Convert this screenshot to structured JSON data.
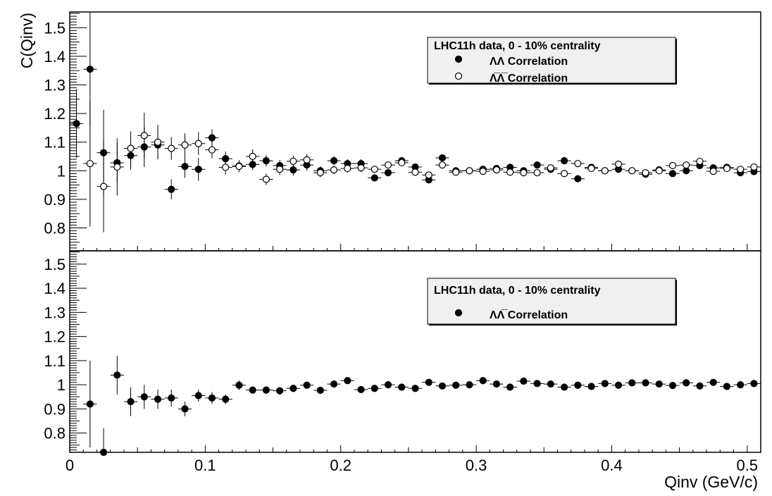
{
  "chart_data": [
    {
      "type": "scatter",
      "ylabel": "C(Qinv)",
      "xlim": [
        0,
        0.51
      ],
      "ylim": [
        0.72,
        1.555
      ],
      "xticks": [
        "0",
        "0.1",
        "0.2",
        "0.3",
        "0.4",
        "0.5"
      ],
      "yticks": [
        "0.8",
        "0.9",
        "1",
        "1.1",
        "1.2",
        "1.3",
        "1.4",
        "1.5"
      ],
      "legend": {
        "title": "LHC11h data, 0 - 10% centrality",
        "entries": [
          {
            "marker": "filled",
            "label": "ΛΛ Correlation"
          },
          {
            "marker": "open",
            "label": "Λ̅Λ̅ Correlation"
          }
        ],
        "placement": "top-right"
      },
      "series": [
        {
          "marker": "filled",
          "x": [
            0.005,
            0.015,
            0.025,
            0.035,
            0.045,
            0.055,
            0.065,
            0.075,
            0.085,
            0.095,
            0.105,
            0.115,
            0.125,
            0.135,
            0.145,
            0.155,
            0.165,
            0.175,
            0.185,
            0.195,
            0.205,
            0.215,
            0.225,
            0.235,
            0.245,
            0.255,
            0.265,
            0.275,
            0.285,
            0.295,
            0.305,
            0.315,
            0.325,
            0.335,
            0.345,
            0.355,
            0.365,
            0.375,
            0.385,
            0.395,
            0.405,
            0.415,
            0.425,
            0.435,
            0.445,
            0.455,
            0.465,
            0.475,
            0.485,
            0.495,
            0.505
          ],
          "y": [
            1.165,
            1.355,
            1.063,
            1.028,
            1.053,
            1.083,
            1.09,
            0.935,
            1.015,
            1.005,
            1.115,
            1.042,
            1.017,
            1.022,
            1.035,
            1.018,
            1.003,
            1.02,
            1.0,
            1.035,
            1.025,
            1.025,
            0.975,
            0.993,
            1.035,
            1.013,
            0.968,
            1.045,
            1.0,
            1.0,
            1.005,
            1.008,
            1.012,
            1.0,
            1.02,
            1.005,
            1.035,
            0.972,
            1.012,
            1.0,
            1.005,
            1.0,
            0.988,
            1.003,
            0.99,
            1.0,
            1.018,
            1.01,
            1.012,
            0.993,
            0.997
          ],
          "yerr": [
            0.12,
            0.2,
            0.15,
            0.07,
            0.05,
            0.07,
            0.05,
            0.035,
            0.04,
            0.04,
            0.03,
            0.025,
            0.02,
            0.02,
            0.02,
            0.02,
            0.02,
            0.02,
            0.015,
            0.015,
            0.015,
            0.015,
            0.012,
            0.012,
            0.012,
            0.012,
            0.012,
            0.012,
            0.01,
            0.01,
            0.01,
            0.01,
            0.01,
            0.01,
            0.01,
            0.01,
            0.01,
            0.008,
            0.008,
            0.008,
            0.008,
            0.008,
            0.008,
            0.008,
            0.008,
            0.008,
            0.008,
            0.008,
            0.008,
            0.008,
            0.008
          ]
        },
        {
          "marker": "open",
          "x": [
            0.015,
            0.025,
            0.035,
            0.045,
            0.055,
            0.065,
            0.075,
            0.085,
            0.095,
            0.105,
            0.115,
            0.125,
            0.135,
            0.145,
            0.155,
            0.165,
            0.175,
            0.185,
            0.195,
            0.205,
            0.215,
            0.225,
            0.235,
            0.245,
            0.255,
            0.265,
            0.275,
            0.285,
            0.295,
            0.305,
            0.315,
            0.325,
            0.335,
            0.345,
            0.355,
            0.365,
            0.375,
            0.385,
            0.395,
            0.405,
            0.415,
            0.425,
            0.435,
            0.445,
            0.455,
            0.465,
            0.475,
            0.485,
            0.495,
            0.505
          ],
          "y": [
            1.025,
            0.945,
            1.013,
            1.078,
            1.123,
            1.1,
            1.078,
            1.09,
            1.095,
            1.073,
            1.012,
            1.015,
            1.05,
            0.97,
            1.005,
            1.033,
            1.038,
            0.993,
            1.003,
            1.008,
            1.01,
            1.005,
            1.02,
            1.028,
            0.995,
            0.985,
            1.02,
            0.995,
            1.0,
            0.998,
            1.003,
            0.995,
            0.993,
            0.993,
            1.01,
            0.99,
            1.025,
            1.008,
            1.0,
            1.023,
            1.0,
            0.993,
            1.0,
            1.018,
            1.02,
            1.033,
            0.998,
            1.008,
            1.005,
            1.013
          ],
          "yerr": [
            0.22,
            0.16,
            0.1,
            0.06,
            0.08,
            0.06,
            0.04,
            0.04,
            0.04,
            0.03,
            0.025,
            0.02,
            0.025,
            0.02,
            0.02,
            0.02,
            0.02,
            0.015,
            0.015,
            0.015,
            0.015,
            0.012,
            0.012,
            0.012,
            0.012,
            0.012,
            0.012,
            0.01,
            0.01,
            0.01,
            0.01,
            0.01,
            0.01,
            0.01,
            0.01,
            0.01,
            0.008,
            0.008,
            0.008,
            0.008,
            0.008,
            0.008,
            0.008,
            0.008,
            0.008,
            0.008,
            0.008,
            0.008,
            0.008,
            0.008
          ]
        }
      ]
    },
    {
      "type": "scatter",
      "xlabel": "Qinv (GeV/c)",
      "xlim": [
        0,
        0.51
      ],
      "ylim": [
        0.72,
        1.555
      ],
      "xticks": [
        "0",
        "0.1",
        "0.2",
        "0.3",
        "0.4",
        "0.5"
      ],
      "yticks": [
        "0.8",
        "0.9",
        "1",
        "1.1",
        "1.2",
        "1.3",
        "1.4",
        "1.5"
      ],
      "legend": {
        "title": "LHC11h data, 0 - 10% centrality",
        "entries": [
          {
            "marker": "filled",
            "label": "ΛΛ̅ Correlation"
          }
        ],
        "placement": "top-right"
      },
      "series": [
        {
          "marker": "filled",
          "x": [
            0.015,
            0.025,
            0.035,
            0.045,
            0.055,
            0.065,
            0.075,
            0.085,
            0.095,
            0.105,
            0.115,
            0.125,
            0.135,
            0.145,
            0.155,
            0.165,
            0.175,
            0.185,
            0.195,
            0.205,
            0.215,
            0.225,
            0.235,
            0.245,
            0.255,
            0.265,
            0.275,
            0.285,
            0.295,
            0.305,
            0.315,
            0.325,
            0.335,
            0.345,
            0.355,
            0.365,
            0.375,
            0.385,
            0.395,
            0.405,
            0.415,
            0.425,
            0.435,
            0.445,
            0.455,
            0.465,
            0.475,
            0.485,
            0.495,
            0.505
          ],
          "y": [
            0.92,
            0.72,
            1.04,
            0.93,
            0.95,
            0.94,
            0.945,
            0.9,
            0.955,
            0.945,
            0.94,
            0.998,
            0.978,
            0.978,
            0.975,
            0.985,
            0.998,
            0.977,
            1.003,
            1.017,
            0.98,
            0.985,
            1.0,
            0.99,
            0.985,
            1.01,
            0.995,
            0.998,
            1.0,
            1.017,
            1.003,
            0.99,
            1.015,
            1.005,
            1.003,
            0.99,
            0.998,
            0.993,
            1.005,
            0.998,
            1.008,
            1.008,
            1.003,
            0.997,
            1.008,
            0.995,
            1.01,
            0.993,
            1.0,
            1.005
          ],
          "yerr": [
            0.18,
            0.1,
            0.08,
            0.06,
            0.05,
            0.04,
            0.035,
            0.03,
            0.025,
            0.025,
            0.02,
            0.02,
            0.015,
            0.015,
            0.015,
            0.015,
            0.012,
            0.012,
            0.012,
            0.012,
            0.01,
            0.01,
            0.01,
            0.01,
            0.01,
            0.01,
            0.008,
            0.008,
            0.008,
            0.008,
            0.008,
            0.008,
            0.008,
            0.008,
            0.008,
            0.008,
            0.007,
            0.007,
            0.007,
            0.007,
            0.007,
            0.007,
            0.007,
            0.007,
            0.007,
            0.007,
            0.007,
            0.007,
            0.007,
            0.007
          ]
        }
      ]
    }
  ]
}
